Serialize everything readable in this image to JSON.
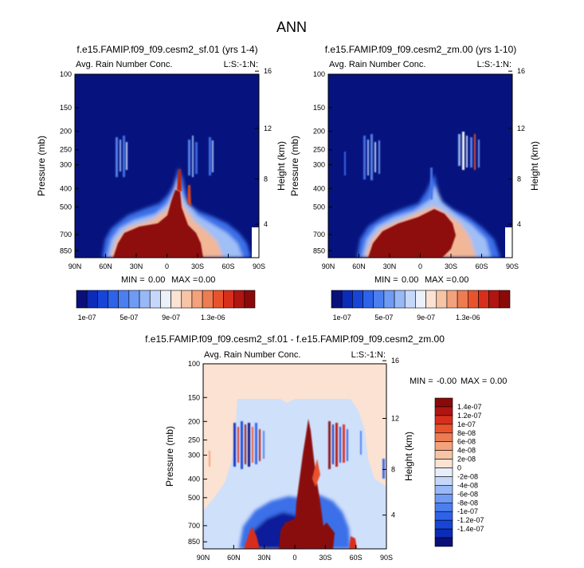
{
  "figure": {
    "title": "ANN"
  },
  "colors": {
    "abs_scale": [
      "#0a0f7a",
      "#0b2bb8",
      "#1645d8",
      "#2d62ea",
      "#4b7ff0",
      "#6f9bf4",
      "#98b8f7",
      "#c6d8fa",
      "#ebf1fb",
      "#fbe2d2",
      "#f7c4a6",
      "#f3a27c",
      "#ee7c52",
      "#e8532d",
      "#d72f1c",
      "#b01511",
      "#8a0a0a"
    ],
    "diff_scale": [
      "#0a0f7a",
      "#0b2bb8",
      "#1645d8",
      "#2d62ea",
      "#4b7ff0",
      "#6f9bf4",
      "#98b8f7",
      "#c6d8fa",
      "#e6eefa",
      "#fbe2d2",
      "#f7c4a6",
      "#f3a27c",
      "#ee7c52",
      "#e8532d",
      "#d72f1c",
      "#b01511",
      "#8a0a0a"
    ]
  },
  "chart_data": [
    {
      "type": "heatmap",
      "title": "f.e15.FAMIP.f09_f09.cesm2_sf.01 (yrs 1-4)",
      "subtitle_left": "Avg. Rain Number Conc.",
      "subtitle_right": "L:S:-1:N:",
      "xlabel": "",
      "ylabel": "Pressure (mb)",
      "ylabel_right": "Height (km)",
      "x_ticks": [
        "90N",
        "60N",
        "30N",
        "0",
        "30S",
        "60S",
        "90S"
      ],
      "y_ticks": [
        "100",
        "150",
        "200",
        "250",
        "300",
        "400",
        "500",
        "700",
        "850"
      ],
      "y_ticks_right": [
        "16",
        "12",
        "8",
        "4"
      ],
      "stats": {
        "min_label": "MIN =",
        "min": "0.00",
        "max_label": "MAX =",
        "max": "0.00"
      },
      "legend": {
        "orientation": "horizontal",
        "labels": [
          "1e-07",
          "5e-07",
          "9e-07",
          "1.3e-06"
        ]
      },
      "features": {
        "background": "low values everywhere",
        "high_core": "lower troposphere 45N-40S, max near 10N-20S extending to ~350 mb",
        "upper_bands": [
          "~40-30N near 200-300 mb",
          "~30S-40S near 200-300 mb"
        ]
      }
    },
    {
      "type": "heatmap",
      "title": "f.e15.FAMIP.f09_f09.cesm2_zm.00 (yrs 1-10)",
      "subtitle_left": "Avg. Rain Number Conc.",
      "subtitle_right": "L:S:-1:N:",
      "xlabel": "",
      "ylabel": "Pressure (mb)",
      "ylabel_right": "Height (km)",
      "x_ticks": [
        "90N",
        "60N",
        "30N",
        "0",
        "30S",
        "60S",
        "90S"
      ],
      "y_ticks": [
        "100",
        "150",
        "200",
        "250",
        "300",
        "400",
        "500",
        "700",
        "850"
      ],
      "y_ticks_right": [
        "16",
        "12",
        "8",
        "4"
      ],
      "stats": {
        "min_label": "MIN =",
        "min": "0.00",
        "max_label": "MAX =",
        "max": "0.00"
      },
      "legend": {
        "orientation": "horizontal",
        "labels": [
          "1e-07",
          "5e-07",
          "9e-07",
          "1.3e-06"
        ]
      },
      "features": {
        "background": "low values everywhere",
        "high_core": "lower troposphere 50N-50S, top near 500 mb",
        "upper_bands": [
          "~40-30N near 200-300 mb",
          "~30S-45S near 200-300 mb"
        ]
      }
    },
    {
      "type": "heatmap",
      "title": "f.e15.FAMIP.f09_f09.cesm2_sf.01 - f.e15.FAMIP.f09_f09.cesm2_zm.00",
      "subtitle_left": "Avg. Rain Number Conc.",
      "subtitle_right": "L:S:-1:N:",
      "xlabel": "",
      "ylabel": "Pressure (mb)",
      "ylabel_right": "Height (km)",
      "x_ticks": [
        "90N",
        "60N",
        "30N",
        "0",
        "30S",
        "60S",
        "90S"
      ],
      "y_ticks": [
        "100",
        "150",
        "200",
        "250",
        "300",
        "400",
        "500",
        "700",
        "850"
      ],
      "y_ticks_right": [
        "16",
        "12",
        "8",
        "4"
      ],
      "stats": {
        "min_label": "MIN =",
        "min": "-0.00",
        "max_label": "MAX =",
        "max": "0.00"
      },
      "legend": {
        "orientation": "vertical",
        "labels": [
          "1.4e-07",
          "1.2e-07",
          "1e-07",
          "8e-08",
          "6e-08",
          "4e-08",
          "2e-08",
          "0",
          "-2e-08",
          "-4e-08",
          "-6e-08",
          "-8e-08",
          "-1e-07",
          "-1.2e-07",
          "-1.4e-07"
        ]
      },
      "features": {
        "background": "near zero",
        "positive_column": "equator to 15S extending up to ~300 mb",
        "negative_region": "lower troposphere 30N-45S below 500 mb"
      }
    }
  ]
}
